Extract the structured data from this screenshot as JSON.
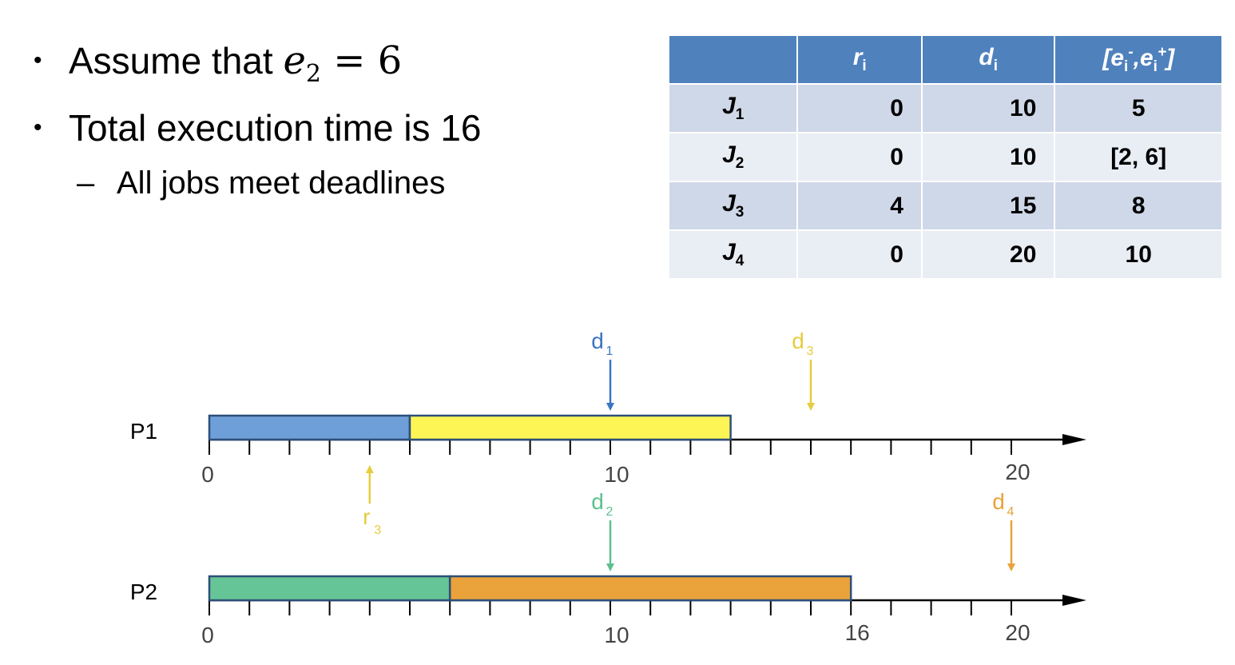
{
  "bullets": [
    {
      "prefix": "Assume that ",
      "math_var": "e",
      "math_sub": "2",
      "math_rest": " = 6"
    },
    {
      "text": "Total execution time is 16"
    }
  ],
  "subbullet": "All jobs meet deadlines",
  "table": {
    "headers": [
      "",
      "r",
      "d",
      "[e",
      "]"
    ],
    "header_sub": "i",
    "header_minus": "-",
    "header_plus": "+",
    "rows": [
      {
        "job": "J",
        "sub": "1",
        "r": "0",
        "d": "10",
        "e": "5"
      },
      {
        "job": "J",
        "sub": "2",
        "r": "0",
        "d": "10",
        "e": "[2, 6]"
      },
      {
        "job": "J",
        "sub": "3",
        "r": "4",
        "d": "15",
        "e": "8"
      },
      {
        "job": "J",
        "sub": "4",
        "r": "0",
        "d": "20",
        "e": "10"
      }
    ]
  },
  "colors": {
    "j1": "#6f9fd8",
    "j2": "#66c596",
    "j3": "#fdf556",
    "j4": "#eaa23a",
    "d1": "#3b74c2",
    "d2": "#5cc08f",
    "d3": "#e6cd3c",
    "d4": "#eaa23a",
    "axis": "#000000"
  },
  "schedule": {
    "time_max": 21,
    "processors": [
      {
        "label": "P1",
        "blocks": [
          {
            "job": "j1",
            "start": 0,
            "end": 5
          },
          {
            "job": "j3",
            "start": 5,
            "end": 13
          }
        ],
        "tick_labels": [
          {
            "t": 0,
            "label": "0"
          },
          {
            "t": 10,
            "label": "10"
          },
          {
            "t": 20,
            "label": "20"
          }
        ],
        "markers": [
          {
            "type": "deadline",
            "t": 10,
            "letter": "d",
            "sub": "1",
            "color": "d1"
          },
          {
            "type": "deadline",
            "t": 15,
            "letter": "d",
            "sub": "3",
            "color": "d3"
          },
          {
            "type": "release",
            "t": 4,
            "letter": "r",
            "sub": "3",
            "color": "d3"
          }
        ]
      },
      {
        "label": "P2",
        "blocks": [
          {
            "job": "j2",
            "start": 0,
            "end": 6
          },
          {
            "job": "j4",
            "start": 6,
            "end": 16
          }
        ],
        "tick_labels": [
          {
            "t": 0,
            "label": "0"
          },
          {
            "t": 10,
            "label": "10"
          },
          {
            "t": 16,
            "label": "16"
          },
          {
            "t": 20,
            "label": "20"
          }
        ],
        "markers": [
          {
            "type": "deadline",
            "t": 10,
            "letter": "d",
            "sub": "2",
            "color": "d2"
          },
          {
            "type": "deadline",
            "t": 20,
            "letter": "d",
            "sub": "4",
            "color": "d4"
          }
        ]
      }
    ]
  }
}
